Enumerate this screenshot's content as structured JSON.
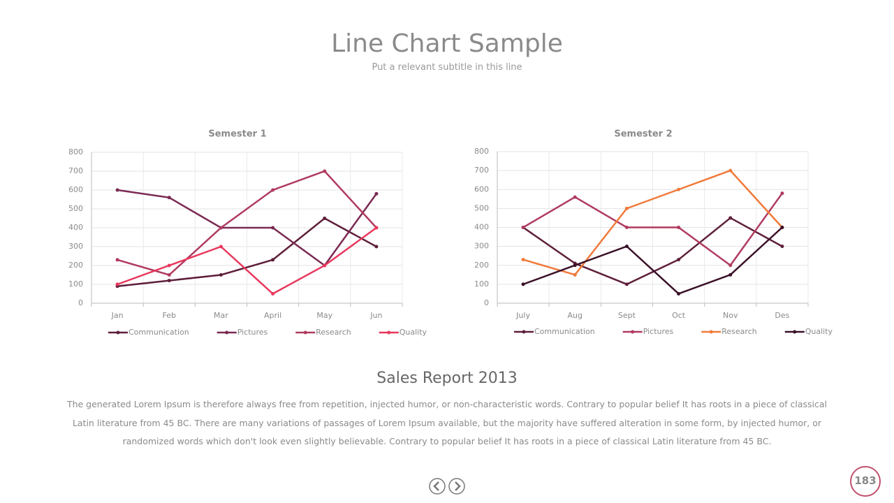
{
  "header": {
    "title": "Line Chart Sample",
    "subtitle": "Put a relevant subtitle in this line"
  },
  "chart_data": [
    {
      "type": "line",
      "title": "Semester 1",
      "categories": [
        "Jan",
        "Feb",
        "Mar",
        "April",
        "May",
        "Jun"
      ],
      "series": [
        {
          "name": "Communication",
          "color": "#5e1f3a",
          "values": [
            90,
            120,
            150,
            230,
            450,
            300
          ]
        },
        {
          "name": "Pictures",
          "color": "#7a2a52",
          "values": [
            600,
            560,
            400,
            400,
            200,
            580
          ]
        },
        {
          "name": "Research",
          "color": "#b03a5f",
          "values": [
            230,
            150,
            400,
            600,
            700,
            400
          ]
        },
        {
          "name": "Quality",
          "color": "#e8375c",
          "values": [
            100,
            200,
            300,
            50,
            200,
            400
          ]
        }
      ],
      "ylim": [
        0,
        800
      ],
      "yticks": [
        0,
        100,
        200,
        300,
        400,
        500,
        600,
        700,
        800
      ],
      "grid": true,
      "legend": "bottom"
    },
    {
      "type": "line",
      "title": "Semester 2",
      "categories": [
        "July",
        "Aug",
        "Sept",
        "Oct",
        "Nov",
        "Des"
      ],
      "series": [
        {
          "name": "Communication",
          "color": "#5e1f3a",
          "values": [
            400,
            210,
            100,
            230,
            450,
            300
          ]
        },
        {
          "name": "Pictures",
          "color": "#b03a5f",
          "values": [
            400,
            560,
            400,
            400,
            200,
            580
          ]
        },
        {
          "name": "Research",
          "color": "#f07a3a",
          "values": [
            230,
            150,
            500,
            600,
            700,
            400
          ]
        },
        {
          "name": "Quality",
          "color": "#3a1028",
          "values": [
            100,
            200,
            300,
            50,
            150,
            400
          ]
        }
      ],
      "ylim": [
        0,
        800
      ],
      "yticks": [
        0,
        100,
        200,
        300,
        400,
        500,
        600,
        700,
        800
      ],
      "grid": true,
      "legend": "bottom"
    }
  ],
  "report": {
    "heading": "Sales Report 2013",
    "text": "The generated Lorem Ipsum is therefore always free from repetition, injected humor, or non-characteristic words. Contrary to popular belief It has roots in a piece of classical Latin literature from 45 BC. There are many variations of passages of Lorem Ipsum available, but the majority have suffered alteration in some form, by injected humor, or randomized words which don't look even slightly believable. Contrary to popular belief It has roots in a piece of classical Latin literature from 45 BC."
  },
  "footer": {
    "page_number": "183"
  }
}
